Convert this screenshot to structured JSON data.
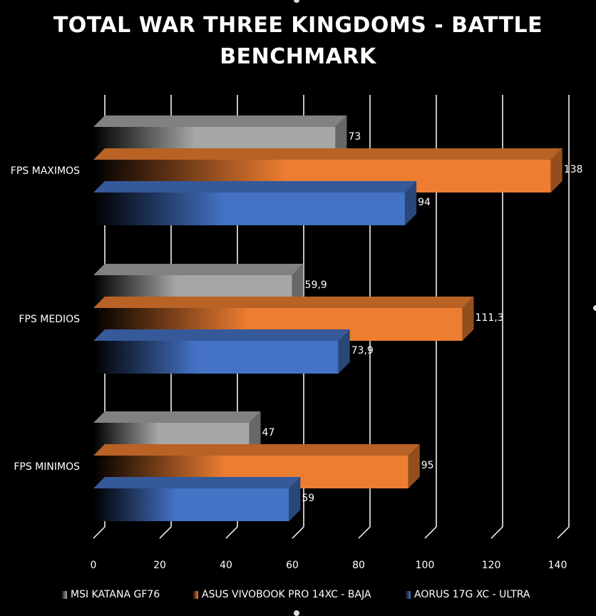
{
  "chart_data": {
    "type": "bar",
    "orientation": "horizontal",
    "title": "TOTAL WAR THREE KINGDOMS - BATTLE BENCHMARK",
    "categories": [
      "FPS MAXIMOS",
      "FPS MEDIOS",
      "FPS MINIMOS"
    ],
    "series": [
      {
        "name": "MSI KATANA GF76",
        "color": "#a6a6a6",
        "values": [
          73,
          59.9,
          47
        ],
        "labels": [
          "73",
          "59,9",
          "47"
        ]
      },
      {
        "name": "ASUS VIVOBOOK PRO 14XC - BAJA",
        "color": "#ed7d31",
        "values": [
          138,
          111.3,
          95
        ],
        "labels": [
          "138",
          "111,3",
          "95"
        ]
      },
      {
        "name": "AORUS 17G XC - ULTRA",
        "color": "#4472c4",
        "values": [
          94,
          73.9,
          59
        ],
        "labels": [
          "94",
          "73,9",
          "59"
        ]
      }
    ],
    "xlim": [
      0,
      140
    ],
    "xticks": [
      0,
      20,
      40,
      60,
      80,
      100,
      120,
      140
    ],
    "grid": true,
    "legend_position": "bottom"
  }
}
